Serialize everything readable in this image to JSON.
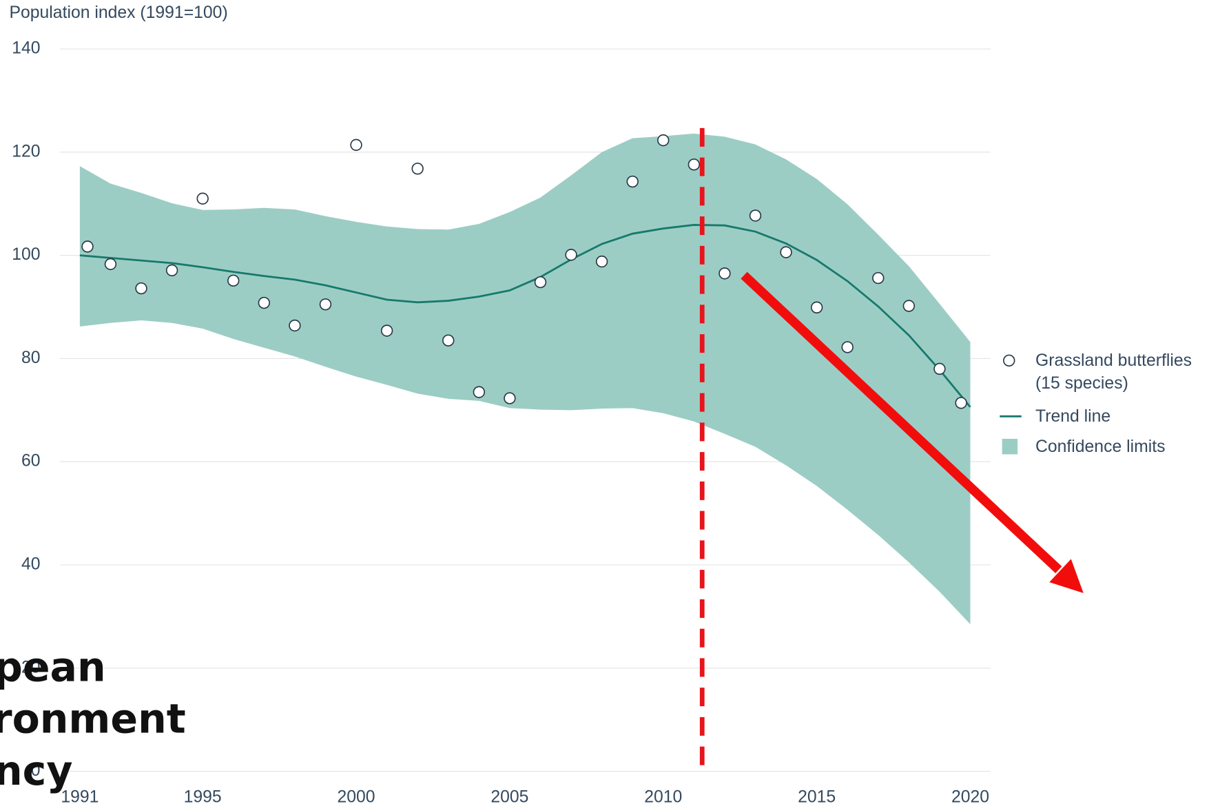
{
  "chart_data": {
    "type": "line",
    "y_axis_label": "Population index (1991=100)",
    "xlim": [
      1991,
      2020
    ],
    "xticks": [
      1991,
      1995,
      2000,
      2005,
      2010,
      2015,
      2020
    ],
    "ylim": [
      0,
      140
    ],
    "yticks": [
      0,
      20,
      40,
      60,
      80,
      100,
      120,
      140
    ],
    "grid": true,
    "legend": "right",
    "series": [
      {
        "name": "Grassland butterflies (15 species)",
        "type": "scatter",
        "color": "#ffffff",
        "edge_color": "#2b3a4a",
        "x": [
          1991.25,
          1992,
          1993,
          1994,
          1995,
          1996,
          1997,
          1998,
          1999,
          2000,
          2001,
          2002,
          2003,
          2004,
          2005,
          2006,
          2007,
          2008,
          2009,
          2010,
          2011,
          2012,
          2013,
          2014,
          2015,
          2016,
          2017,
          2018,
          2019,
          2019.7
        ],
        "values": [
          101.7,
          98.3,
          93.6,
          97.1,
          111.0,
          95.1,
          90.8,
          86.4,
          90.5,
          121.4,
          85.4,
          116.8,
          83.5,
          73.5,
          72.3,
          94.8,
          100.1,
          98.8,
          114.3,
          122.3,
          117.6,
          96.5,
          107.7,
          100.6,
          89.9,
          82.2,
          95.6,
          90.2,
          78.0,
          71.4
        ]
      },
      {
        "name": "Trend line",
        "type": "line",
        "color": "#17796c",
        "x": [
          1991,
          1992,
          1993,
          1994,
          1995,
          1996,
          1997,
          1998,
          1999,
          2000,
          2001,
          2002,
          2003,
          2004,
          2005,
          2006,
          2007,
          2008,
          2009,
          2010,
          2011,
          2012,
          2013,
          2014,
          2015,
          2016,
          2017,
          2018,
          2019,
          2020
        ],
        "values": [
          100,
          99.5,
          99,
          98.5,
          97.7,
          96.8,
          96,
          95.3,
          94.2,
          92.8,
          91.4,
          90.9,
          91.2,
          92,
          93.2,
          95.8,
          99.2,
          102.2,
          104.2,
          105.2,
          105.9,
          105.8,
          104.6,
          102.3,
          99.1,
          95,
          90.1,
          84.5,
          77.8,
          70.6
        ]
      },
      {
        "name": "Confidence limits",
        "type": "band",
        "color": "#9ccdc5",
        "x": [
          1991,
          1992,
          1993,
          1994,
          1995,
          1996,
          1997,
          1998,
          1999,
          2000,
          2001,
          2002,
          2003,
          2004,
          2005,
          2006,
          2007,
          2008,
          2009,
          2010,
          2011,
          2012,
          2013,
          2014,
          2015,
          2016,
          2017,
          2018,
          2019,
          2020
        ],
        "upper": [
          117.3,
          113.9,
          112.1,
          110.1,
          108.8,
          108.9,
          109.2,
          108.9,
          107.6,
          106.5,
          105.6,
          105.1,
          105.0,
          106.1,
          108.4,
          111.2,
          115.5,
          120.0,
          122.7,
          123.1,
          123.6,
          123.0,
          121.5,
          118.6,
          114.8,
          109.9,
          104.0,
          97.9,
          90.6,
          83.2
        ],
        "lower": [
          86.2,
          86.9,
          87.4,
          86.9,
          85.8,
          83.8,
          82.1,
          80.4,
          78.4,
          76.5,
          74.9,
          73.2,
          72.2,
          71.8,
          70.4,
          70.1,
          70.0,
          70.3,
          70.4,
          69.4,
          67.8,
          65.4,
          62.9,
          59.3,
          55.3,
          50.7,
          45.8,
          40.5,
          34.8,
          28.5
        ]
      }
    ]
  },
  "logo": [
    "pean",
    "ronment",
    "ncy"
  ]
}
